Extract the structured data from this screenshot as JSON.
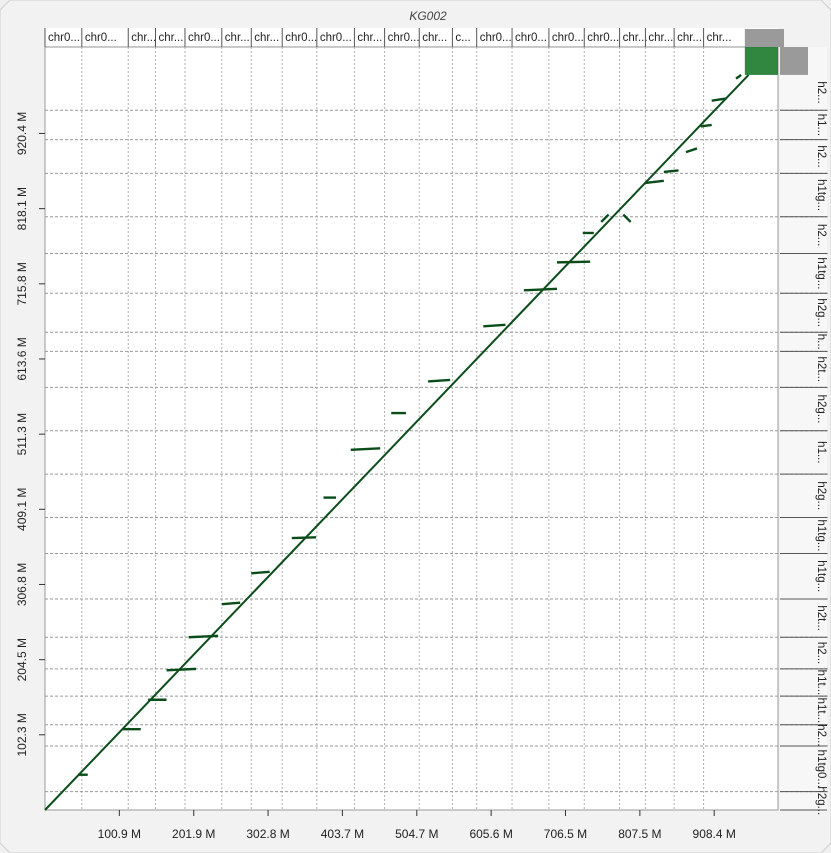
{
  "chart_data": {
    "type": "scatter",
    "title": "KG002",
    "x_ticks": [
      "100.9 M",
      "201.9 M",
      "302.8 M",
      "403.7 M",
      "504.7 M",
      "605.6 M",
      "706.5 M",
      "807.5 M",
      "908.4 M"
    ],
    "x_tick_values": [
      100.9,
      201.9,
      302.8,
      403.7,
      504.7,
      605.6,
      706.5,
      807.5,
      908.4
    ],
    "y_ticks": [
      "102.3 M",
      "204.5 M",
      "306.8 M",
      "409.1 M",
      "511.3 M",
      "613.6 M",
      "715.8 M",
      "818.1 M",
      "920.4 M"
    ],
    "y_tick_values": [
      102.3,
      204.5,
      306.8,
      409.1,
      511.3,
      613.6,
      715.8,
      818.1,
      920.4
    ],
    "xlim": [
      0,
      995
    ],
    "ylim": [
      0,
      1038
    ],
    "x_chromosomes": [
      {
        "label": "chr0...",
        "start": 0,
        "end": 50
      },
      {
        "label": "chr0...",
        "start": 50,
        "end": 113
      },
      {
        "label": "chr...",
        "start": 113,
        "end": 150
      },
      {
        "label": "chr...",
        "start": 150,
        "end": 190
      },
      {
        "label": "chr0...",
        "start": 190,
        "end": 240
      },
      {
        "label": "chr...",
        "start": 240,
        "end": 280
      },
      {
        "label": "chr...",
        "start": 280,
        "end": 322
      },
      {
        "label": "chr0...",
        "start": 322,
        "end": 369
      },
      {
        "label": "chr0...",
        "start": 369,
        "end": 420
      },
      {
        "label": "chr...",
        "start": 420,
        "end": 461
      },
      {
        "label": "chr0...",
        "start": 461,
        "end": 508
      },
      {
        "label": "chr...",
        "start": 508,
        "end": 553
      },
      {
        "label": "c...",
        "start": 553,
        "end": 586
      },
      {
        "label": "chr0...",
        "start": 586,
        "end": 634
      },
      {
        "label": "chr0...",
        "start": 634,
        "end": 684
      },
      {
        "label": "chr0...",
        "start": 684,
        "end": 732
      },
      {
        "label": "chr0...",
        "start": 732,
        "end": 780
      },
      {
        "label": "chr...",
        "start": 780,
        "end": 815
      },
      {
        "label": "chr...",
        "start": 815,
        "end": 854
      },
      {
        "label": "chr...",
        "start": 854,
        "end": 894
      },
      {
        "label": "chr...",
        "start": 894,
        "end": 950
      }
    ],
    "y_chromosomes": [
      {
        "label": "h2g...",
        "start": 0,
        "end": 25
      },
      {
        "label": "h1tg0...",
        "start": 25,
        "end": 87
      },
      {
        "label": "h2...",
        "start": 87,
        "end": 116
      },
      {
        "label": "h1t...",
        "start": 116,
        "end": 155
      },
      {
        "label": "h1t...",
        "start": 155,
        "end": 192
      },
      {
        "label": "h2...",
        "start": 192,
        "end": 235
      },
      {
        "label": "h2t...",
        "start": 235,
        "end": 287
      },
      {
        "label": "h1tg...",
        "start": 287,
        "end": 349
      },
      {
        "label": "h1tg...",
        "start": 349,
        "end": 398
      },
      {
        "label": "h2g...",
        "start": 398,
        "end": 457
      },
      {
        "label": "h1...",
        "start": 457,
        "end": 516
      },
      {
        "label": "h2g...",
        "start": 516,
        "end": 575
      },
      {
        "label": "h2t...",
        "start": 575,
        "end": 624
      },
      {
        "label": "h...",
        "start": 624,
        "end": 650
      },
      {
        "label": "h2g...",
        "start": 650,
        "end": 703
      },
      {
        "label": "h1tg...",
        "start": 703,
        "end": 757
      },
      {
        "label": "h2...",
        "start": 757,
        "end": 807
      },
      {
        "label": "h1tg...",
        "start": 807,
        "end": 866
      },
      {
        "label": "h2...",
        "start": 866,
        "end": 912
      },
      {
        "label": "h1...",
        "start": 912,
        "end": 952
      },
      {
        "label": "h2...",
        "start": 952,
        "end": 1000
      }
    ],
    "series": [
      {
        "name": "",
        "diagonal": [
          [
            0,
            0
          ],
          [
            955,
            1000
          ]
        ],
        "segments": [
          [
            [
              45,
              48
            ],
            [
              58,
              48
            ]
          ],
          [
            [
              105,
              110
            ],
            [
              130,
              110
            ]
          ],
          [
            [
              140,
              150
            ],
            [
              165,
              150
            ]
          ],
          [
            [
              165,
              190
            ],
            [
              205,
              192
            ]
          ],
          [
            [
              195,
              235
            ],
            [
              235,
              237
            ]
          ],
          [
            [
              240,
              280
            ],
            [
              265,
              282
            ]
          ],
          [
            [
              280,
              322
            ],
            [
              305,
              324
            ]
          ],
          [
            [
              335,
              370
            ],
            [
              368,
              371
            ]
          ],
          [
            [
              378,
              425
            ],
            [
              395,
              425
            ]
          ],
          [
            [
              415,
              490
            ],
            [
              455,
              492
            ]
          ],
          [
            [
              470,
              540
            ],
            [
              490,
              540
            ]
          ],
          [
            [
              520,
              583
            ],
            [
              550,
              585
            ]
          ],
          [
            [
              595,
              658
            ],
            [
              625,
              660
            ]
          ],
          [
            [
              650,
              707
            ],
            [
              695,
              709
            ]
          ],
          [
            [
              695,
              745
            ],
            [
              740,
              746
            ]
          ],
          [
            [
              730,
              785
            ],
            [
              745,
              785
            ]
          ],
          [
            [
              755,
              800
            ],
            [
              765,
              810
            ]
          ],
          [
            [
              785,
              810
            ],
            [
              795,
              800
            ]
          ],
          [
            [
              815,
              853
            ],
            [
              840,
              856
            ]
          ],
          [
            [
              840,
              868
            ],
            [
              860,
              870
            ]
          ],
          [
            [
              870,
              895
            ],
            [
              885,
              900
            ]
          ],
          [
            [
              890,
              930
            ],
            [
              905,
              932
            ]
          ],
          [
            [
              905,
              965
            ],
            [
              925,
              968
            ]
          ],
          [
            [
              938,
              995
            ],
            [
              945,
              1000
            ]
          ]
        ],
        "color": "#0b4d1a"
      }
    ],
    "grid": true,
    "highlight_corner": {
      "x_range": [
        950,
        995
      ],
      "y_range": [
        1000,
        1038
      ],
      "color": "#1b7a2b"
    }
  }
}
